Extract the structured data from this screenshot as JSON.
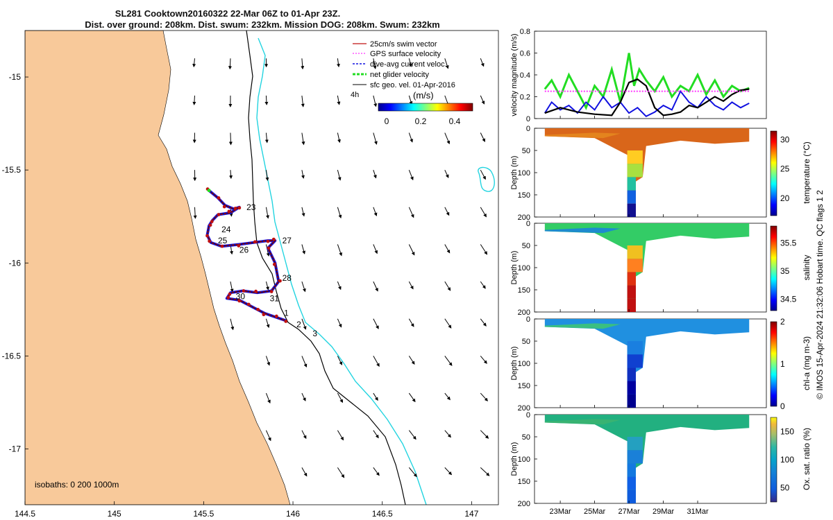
{
  "title": {
    "line1": "SL281 Cooktown20160322 22-Mar 06Z to 01-Apr 23Z.",
    "line2": "Dist. over ground: 208km. Dist. swum: 232km. Mission DOG: 208km. Swum: 232km"
  },
  "credit": "© IMOS 15-Apr-2024 21:32:06 Hobart time. QC flags 1  2",
  "colors": {
    "land": "#F8C99A",
    "isobath_200": "#000000",
    "isobath_1000": "#22D4E0",
    "track": "#c01010",
    "dive_avg": "#1010e0",
    "net_velocity": "#22dd22",
    "gps": "#ff33ff"
  },
  "chart_data": [
    {
      "type": "map",
      "name": "glider track map",
      "xlim": [
        144.5,
        147.15
      ],
      "ylim": [
        -17.3,
        -14.75
      ],
      "xticks": [
        "144.5",
        "145",
        "145.5",
        "146",
        "146.5",
        "147"
      ],
      "yticks": [
        "-15",
        "-15.5",
        "-16",
        "-16.5",
        "-17"
      ],
      "legend": {
        "items": [
          "25cm/s swim vector",
          "GPS surface velocity",
          "dive-avg current veloc.",
          "net glider velocity",
          "sfc geo. vel. 01-Apr-2016"
        ],
        "time_label": "4h",
        "colorbar_label": "(m/s)",
        "colorbar_ticks": [
          "0",
          "0.2",
          "0.4"
        ]
      },
      "isobath_label": "isobaths: 0   200  1000m",
      "track": [
        [
          145.53,
          -15.61
        ],
        [
          145.58,
          -15.65
        ],
        [
          145.62,
          -15.69
        ],
        [
          145.67,
          -15.71
        ],
        [
          145.7,
          -15.7
        ],
        [
          145.65,
          -15.73
        ],
        [
          145.58,
          -15.74
        ],
        [
          145.55,
          -15.77
        ],
        [
          145.53,
          -15.8
        ],
        [
          145.52,
          -15.85
        ],
        [
          145.54,
          -15.89
        ],
        [
          145.6,
          -15.91
        ],
        [
          145.7,
          -15.9
        ],
        [
          145.78,
          -15.89
        ],
        [
          145.86,
          -15.88
        ],
        [
          145.9,
          -15.88
        ],
        [
          145.86,
          -15.92
        ],
        [
          145.9,
          -16.0
        ],
        [
          145.92,
          -16.1
        ],
        [
          145.88,
          -16.15
        ],
        [
          145.8,
          -16.16
        ],
        [
          145.72,
          -16.15
        ],
        [
          145.65,
          -16.16
        ],
        [
          145.63,
          -16.19
        ],
        [
          145.7,
          -16.2
        ],
        [
          145.76,
          -16.23
        ],
        [
          145.8,
          -16.25
        ],
        [
          145.84,
          -16.27
        ],
        [
          145.9,
          -16.29
        ],
        [
          145.96,
          -16.31
        ]
      ],
      "day_labels": [
        {
          "day": "23",
          "lon": 145.74,
          "lat": -15.7
        },
        {
          "day": "24",
          "lon": 145.6,
          "lat": -15.82
        },
        {
          "day": "25",
          "lon": 145.58,
          "lat": -15.88
        },
        {
          "day": "26",
          "lon": 145.7,
          "lat": -15.93
        },
        {
          "day": "27",
          "lon": 145.94,
          "lat": -15.88
        },
        {
          "day": "28",
          "lon": 145.94,
          "lat": -16.08
        },
        {
          "day": "30",
          "lon": 145.68,
          "lat": -16.18
        },
        {
          "day": "31",
          "lon": 145.87,
          "lat": -16.19
        },
        {
          "day": "1",
          "lon": 145.95,
          "lat": -16.27
        },
        {
          "day": "2",
          "lon": 146.02,
          "lat": -16.33
        },
        {
          "day": "3",
          "lon": 146.11,
          "lat": -16.38
        }
      ],
      "geo_velocity_grid": {
        "lon_start": 145.45,
        "lon_step": 0.2,
        "lat_start": -14.9,
        "lat_step": -0.2,
        "cols": 12,
        "rows": 12,
        "u": -0.05,
        "v": -0.12
      }
    },
    {
      "type": "line",
      "name": "velocity magnitude",
      "ylabel": "velocity magnitude (m/s)",
      "ylim": [
        0,
        0.8
      ],
      "yticks": [
        "0",
        "0.2",
        "0.4",
        "0.6",
        "0.8"
      ],
      "xlim": [
        21.5,
        35.0
      ],
      "series": [
        {
          "name": "net glider velocity",
          "color": "#22dd22",
          "x": [
            22.1,
            22.5,
            23.0,
            23.5,
            24.0,
            24.5,
            25.0,
            25.5,
            26.0,
            26.5,
            27.0,
            27.3,
            27.6,
            28.0,
            28.5,
            29.0,
            29.5,
            30.0,
            30.5,
            31.0,
            31.5,
            32.0,
            32.5,
            33.0,
            33.5,
            34.0
          ],
          "y": [
            0.27,
            0.35,
            0.2,
            0.4,
            0.25,
            0.1,
            0.3,
            0.2,
            0.45,
            0.15,
            0.6,
            0.3,
            0.45,
            0.35,
            0.25,
            0.38,
            0.2,
            0.3,
            0.25,
            0.4,
            0.22,
            0.35,
            0.2,
            0.3,
            0.25,
            0.28
          ]
        },
        {
          "name": "dive-avg current veloc.",
          "color": "#1010e0",
          "x": [
            22.1,
            22.5,
            23.0,
            23.5,
            24.0,
            24.5,
            25.0,
            25.5,
            26.0,
            26.5,
            27.0,
            27.5,
            28.0,
            28.5,
            29.0,
            29.5,
            30.0,
            30.5,
            31.0,
            31.5,
            32.0,
            32.5,
            33.0,
            33.5,
            34.0
          ],
          "y": [
            0.05,
            0.15,
            0.08,
            0.12,
            0.05,
            0.15,
            0.08,
            0.2,
            0.1,
            0.15,
            0.05,
            0.1,
            0.02,
            0.06,
            0.12,
            0.08,
            0.25,
            0.15,
            0.1,
            0.2,
            0.12,
            0.08,
            0.15,
            0.1,
            0.14
          ]
        },
        {
          "name": "sfc geo. vel.",
          "color": "#000000",
          "x": [
            22.1,
            23.0,
            24.0,
            25.0,
            26.0,
            26.5,
            27.0,
            27.5,
            28.0,
            28.5,
            29.0,
            29.5,
            30.0,
            30.5,
            31.0,
            31.5,
            32.0,
            32.5,
            33.0,
            33.5,
            34.0
          ],
          "y": [
            0.05,
            0.1,
            0.06,
            0.04,
            0.03,
            0.15,
            0.33,
            0.36,
            0.3,
            0.1,
            0.03,
            0.04,
            0.06,
            0.12,
            0.1,
            0.15,
            0.2,
            0.16,
            0.22,
            0.26,
            0.27
          ]
        },
        {
          "name": "GPS surface velocity",
          "color": "#ff33ff",
          "x": [
            22.1,
            34.0
          ],
          "y": [
            0.25,
            0.25
          ]
        }
      ]
    },
    {
      "type": "heatmap",
      "name": "temperature section",
      "ylabel": "Depth (m)",
      "cbar_label": "temperature (°C)",
      "cbar_ticks": [
        "20",
        "25",
        "30"
      ],
      "cbar_range": [
        17,
        31.5
      ],
      "yticks": [
        "0",
        "50",
        "100",
        "150",
        "200"
      ],
      "ylim": [
        0,
        200
      ]
    },
    {
      "type": "heatmap",
      "name": "salinity section",
      "ylabel": "Depth (m)",
      "cbar_label": "salinity",
      "cbar_ticks": [
        "34.5",
        "35",
        "35.5"
      ],
      "cbar_range": [
        34.3,
        35.8
      ],
      "yticks": [
        "0",
        "50",
        "100",
        "150",
        "200"
      ],
      "ylim": [
        0,
        200
      ]
    },
    {
      "type": "heatmap",
      "name": "chlorophyll section",
      "ylabel": "Depth (m)",
      "cbar_label": "chl-a (mg m-3)",
      "cbar_ticks": [
        "0",
        "1",
        "2"
      ],
      "cbar_range": [
        0,
        2
      ],
      "yticks": [
        "0",
        "50",
        "100",
        "150",
        "200"
      ],
      "ylim": [
        0,
        200
      ]
    },
    {
      "type": "heatmap",
      "name": "oxygen section",
      "ylabel": "Depth (m)",
      "cbar_label": "Ox. sat. ratio (%)",
      "cbar_ticks": [
        "50",
        "100",
        "150"
      ],
      "cbar_range": [
        25,
        175
      ],
      "yticks": [
        "0",
        "50",
        "100",
        "150",
        "200"
      ],
      "ylim": [
        0,
        200
      ],
      "xticks": [
        "23Mar",
        "25Mar",
        "27Mar",
        "29Mar",
        "31Mar"
      ],
      "xtick_days": [
        23,
        25,
        27,
        29,
        31
      ]
    }
  ]
}
